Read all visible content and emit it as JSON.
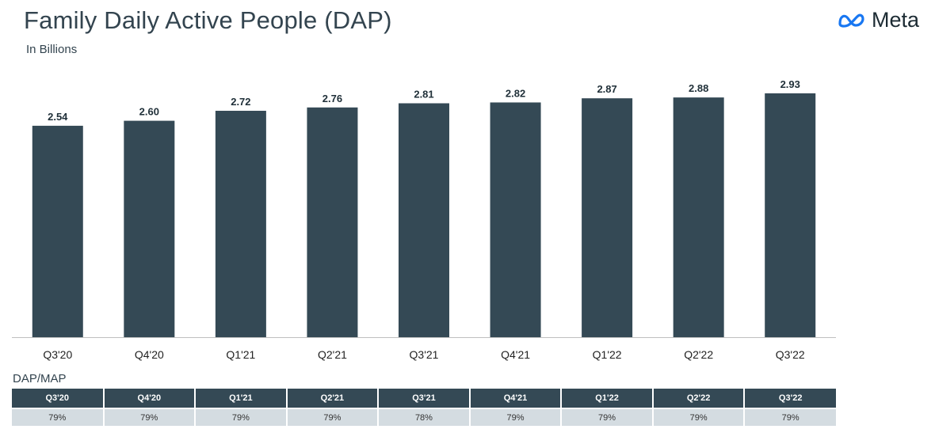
{
  "header": {
    "title": "Family Daily Active People (DAP)",
    "subtitle": "In Billions",
    "logo_text": "Meta"
  },
  "colors": {
    "bar": "#344955",
    "table_header": "#344955",
    "table_row": "#d4dce1"
  },
  "chart_data": {
    "type": "bar",
    "title": "Family Daily Active People (DAP)",
    "subtitle": "In Billions",
    "categories": [
      "Q3'20",
      "Q4'20",
      "Q1'21",
      "Q2'21",
      "Q3'21",
      "Q4'21",
      "Q1'22",
      "Q2'22",
      "Q3'22"
    ],
    "values": [
      2.54,
      2.6,
      2.72,
      2.76,
      2.81,
      2.82,
      2.87,
      2.88,
      2.93
    ],
    "value_labels": [
      "2.54",
      "2.60",
      "2.72",
      "2.76",
      "2.81",
      "2.82",
      "2.87",
      "2.88",
      "2.93"
    ],
    "xlabel": "",
    "ylabel": "",
    "ylim": [
      0,
      3.1
    ],
    "grid": false,
    "legend": "none"
  },
  "table": {
    "title": "DAP/MAP",
    "headers": [
      "Q3'20",
      "Q4'20",
      "Q1'21",
      "Q2'21",
      "Q3'21",
      "Q4'21",
      "Q1'22",
      "Q2'22",
      "Q3'22"
    ],
    "values": [
      "79%",
      "79%",
      "79%",
      "79%",
      "78%",
      "79%",
      "79%",
      "79%",
      "79%"
    ]
  }
}
